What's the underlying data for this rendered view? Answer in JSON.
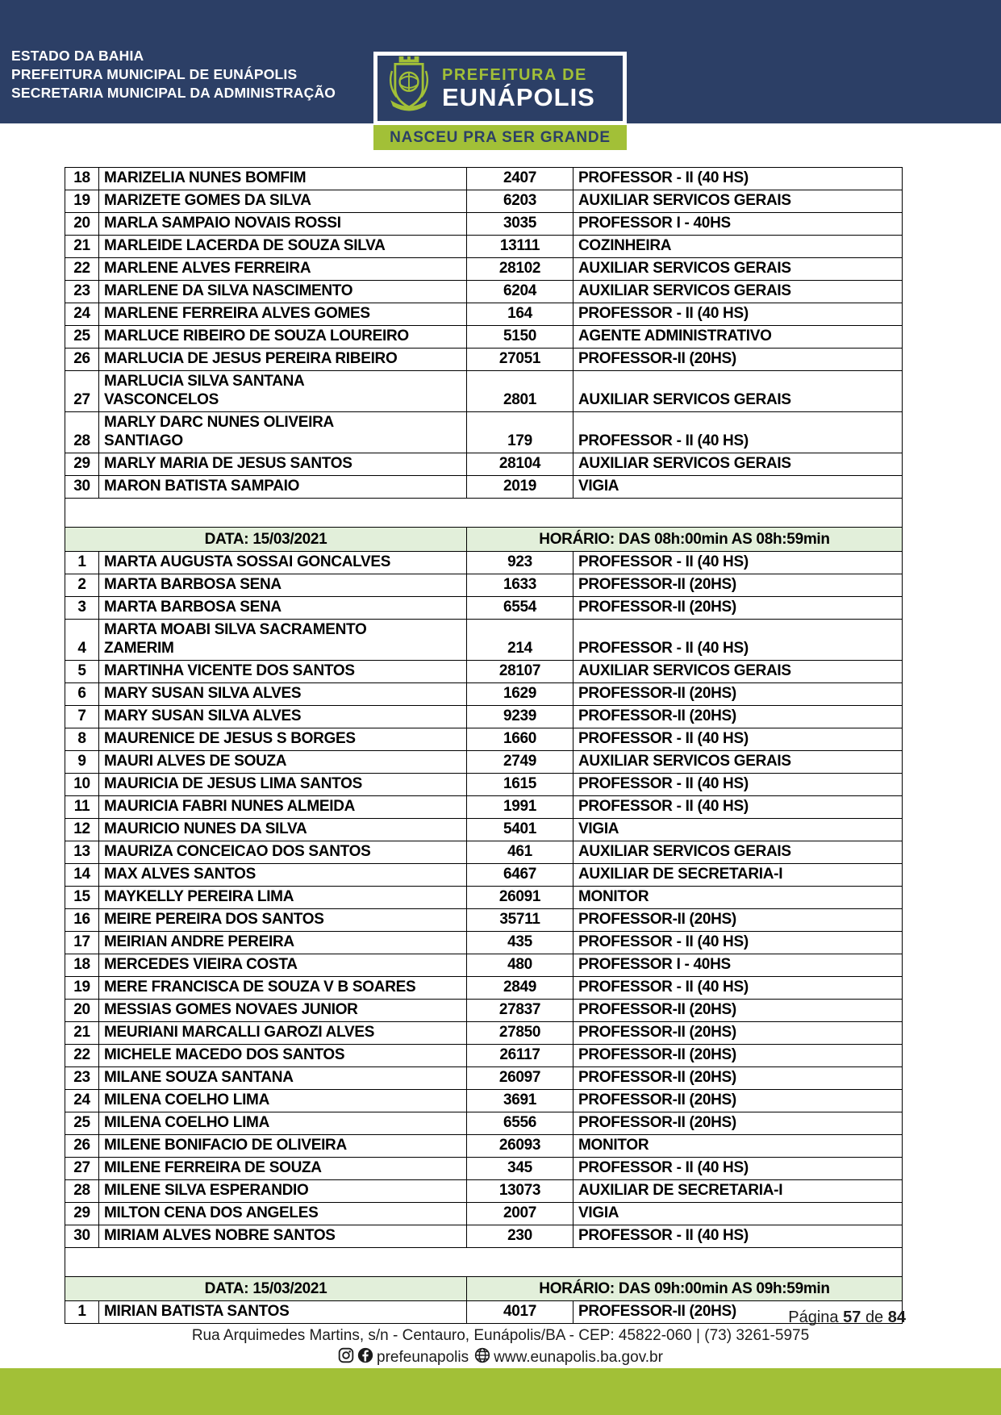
{
  "header": {
    "org_lines": [
      "ESTADO DA BAHIA",
      "PREFEITURA MUNICIPAL DE EUNÁPOLIS",
      "SECRETARIA MUNICIPAL DA ADMINISTRAÇÃO"
    ],
    "logo": {
      "line1": "PREFEITURA DE",
      "line2": "EUNÁPOLIS",
      "slogan": "NASCEU PRA SER GRANDE"
    }
  },
  "table": {
    "sections": [
      {
        "header": null,
        "rows": [
          [
            "18",
            "MARIZELIA NUNES BOMFIM",
            "2407",
            "PROFESSOR - II (40 HS)"
          ],
          [
            "19",
            "MARIZETE GOMES DA SILVA",
            "6203",
            "AUXILIAR SERVICOS GERAIS"
          ],
          [
            "20",
            "MARLA SAMPAIO NOVAIS ROSSI",
            "3035",
            "PROFESSOR I - 40HS"
          ],
          [
            "21",
            "MARLEIDE LACERDA DE SOUZA SILVA",
            "13111",
            "COZINHEIRA"
          ],
          [
            "22",
            "MARLENE ALVES FERREIRA",
            "28102",
            "AUXILIAR SERVICOS GERAIS"
          ],
          [
            "23",
            "MARLENE DA SILVA NASCIMENTO",
            "6204",
            "AUXILIAR SERVICOS GERAIS"
          ],
          [
            "24",
            "MARLENE FERREIRA ALVES GOMES",
            "164",
            "PROFESSOR - II (40 HS)"
          ],
          [
            "25",
            "MARLUCE RIBEIRO DE SOUZA LOUREIRO",
            "5150",
            "AGENTE ADMINISTRATIVO"
          ],
          [
            "26",
            "MARLUCIA DE JESUS PEREIRA RIBEIRO",
            "27051",
            "PROFESSOR-II (20HS)"
          ],
          [
            "27",
            "MARLUCIA SILVA SANTANA\nVASCONCELOS",
            "2801",
            "AUXILIAR SERVICOS GERAIS"
          ],
          [
            "28",
            "MARLY DARC NUNES OLIVEIRA\nSANTIAGO",
            "179",
            "PROFESSOR - II (40 HS)"
          ],
          [
            "29",
            "MARLY MARIA DE JESUS SANTOS",
            "28104",
            "AUXILIAR SERVICOS GERAIS"
          ],
          [
            "30",
            "MARON BATISTA SAMPAIO",
            "2019",
            "VIGIA"
          ]
        ]
      },
      {
        "header": {
          "date": "DATA: 15/03/2021",
          "time": "HORÁRIO: DAS 08h:00min AS 08h:59min"
        },
        "rows": [
          [
            "1",
            "MARTA AUGUSTA SOSSAI GONCALVES",
            "923",
            "PROFESSOR - II (40 HS)"
          ],
          [
            "2",
            "MARTA BARBOSA SENA",
            "1633",
            "PROFESSOR-II (20HS)"
          ],
          [
            "3",
            "MARTA BARBOSA SENA",
            "6554",
            "PROFESSOR-II (20HS)"
          ],
          [
            "4",
            "MARTA MOABI SILVA SACRAMENTO\nZAMERIM",
            "214",
            "PROFESSOR - II (40 HS)"
          ],
          [
            "5",
            "MARTINHA VICENTE DOS SANTOS",
            "28107",
            "AUXILIAR SERVICOS GERAIS"
          ],
          [
            "6",
            "MARY SUSAN SILVA ALVES",
            "1629",
            "PROFESSOR-II (20HS)"
          ],
          [
            "7",
            "MARY SUSAN SILVA ALVES",
            "9239",
            "PROFESSOR-II (20HS)"
          ],
          [
            "8",
            "MAURENICE DE JESUS S BORGES",
            "1660",
            "PROFESSOR - II (40 HS)"
          ],
          [
            "9",
            "MAURI ALVES DE SOUZA",
            "2749",
            "AUXILIAR SERVICOS GERAIS"
          ],
          [
            "10",
            "MAURICIA DE JESUS LIMA SANTOS",
            "1615",
            "PROFESSOR - II (40 HS)"
          ],
          [
            "11",
            "MAURICIA FABRI NUNES ALMEIDA",
            "1991",
            "PROFESSOR - II (40 HS)"
          ],
          [
            "12",
            "MAURICIO NUNES DA SILVA",
            "5401",
            "VIGIA"
          ],
          [
            "13",
            "MAURIZA CONCEICAO DOS SANTOS",
            "461",
            "AUXILIAR SERVICOS GERAIS"
          ],
          [
            "14",
            "MAX ALVES SANTOS",
            "6467",
            "AUXILIAR DE SECRETARIA-I"
          ],
          [
            "15",
            "MAYKELLY PEREIRA LIMA",
            "26091",
            "MONITOR"
          ],
          [
            "16",
            "MEIRE PEREIRA DOS SANTOS",
            "35711",
            "PROFESSOR-II (20HS)"
          ],
          [
            "17",
            "MEIRIAN ANDRE PEREIRA",
            "435",
            "PROFESSOR - II (40 HS)"
          ],
          [
            "18",
            "MERCEDES VIEIRA COSTA",
            "480",
            "PROFESSOR I - 40HS"
          ],
          [
            "19",
            "MERE FRANCISCA DE SOUZA V B SOARES",
            "2849",
            "PROFESSOR - II (40 HS)"
          ],
          [
            "20",
            "MESSIAS GOMES NOVAES JUNIOR",
            "27837",
            "PROFESSOR-II (20HS)"
          ],
          [
            "21",
            "MEURIANI MARCALLI GAROZI ALVES",
            "27850",
            "PROFESSOR-II (20HS)"
          ],
          [
            "22",
            "MICHELE MACEDO DOS SANTOS",
            "26117",
            "PROFESSOR-II (20HS)"
          ],
          [
            "23",
            "MILANE SOUZA SANTANA",
            "26097",
            "PROFESSOR-II (20HS)"
          ],
          [
            "24",
            "MILENA COELHO LIMA",
            "3691",
            "PROFESSOR-II (20HS)"
          ],
          [
            "25",
            "MILENA COELHO LIMA",
            "6556",
            "PROFESSOR-II (20HS)"
          ],
          [
            "26",
            "MILENE BONIFACIO DE OLIVEIRA",
            "26093",
            "MONITOR"
          ],
          [
            "27",
            "MILENE FERREIRA DE SOUZA",
            "345",
            "PROFESSOR - II (40 HS)"
          ],
          [
            "28",
            "MILENE SILVA ESPERANDIO",
            "13073",
            "AUXILIAR DE SECRETARIA-I"
          ],
          [
            "29",
            "MILTON CENA DOS ANGELES",
            "2007",
            "VIGIA"
          ],
          [
            "30",
            "MIRIAM ALVES NOBRE SANTOS",
            "230",
            "PROFESSOR - II (40 HS)"
          ]
        ]
      },
      {
        "header": {
          "date": "DATA: 15/03/2021",
          "time": "HORÁRIO: DAS 09h:00min AS 09h:59min"
        },
        "rows": [
          [
            "1",
            "MIRIAN BATISTA SANTOS",
            "4017",
            "PROFESSOR-II (20HS)"
          ]
        ]
      }
    ]
  },
  "footer": {
    "page_prefix": "Página",
    "page_number": "57",
    "page_of": "de",
    "page_total": "84",
    "address": "Rua Arquimedes Martins, s/n - Centauro, Eunápolis/BA - CEP: 45822-060  |  (73) 3261-5975",
    "social_handle": "prefeunapolis",
    "website": "www.eunapolis.ba.gov.br"
  },
  "colors": {
    "navy": "#2c3f66",
    "green": "#a2c037",
    "paleGreen": "#e2efda",
    "ink": "#000000"
  }
}
